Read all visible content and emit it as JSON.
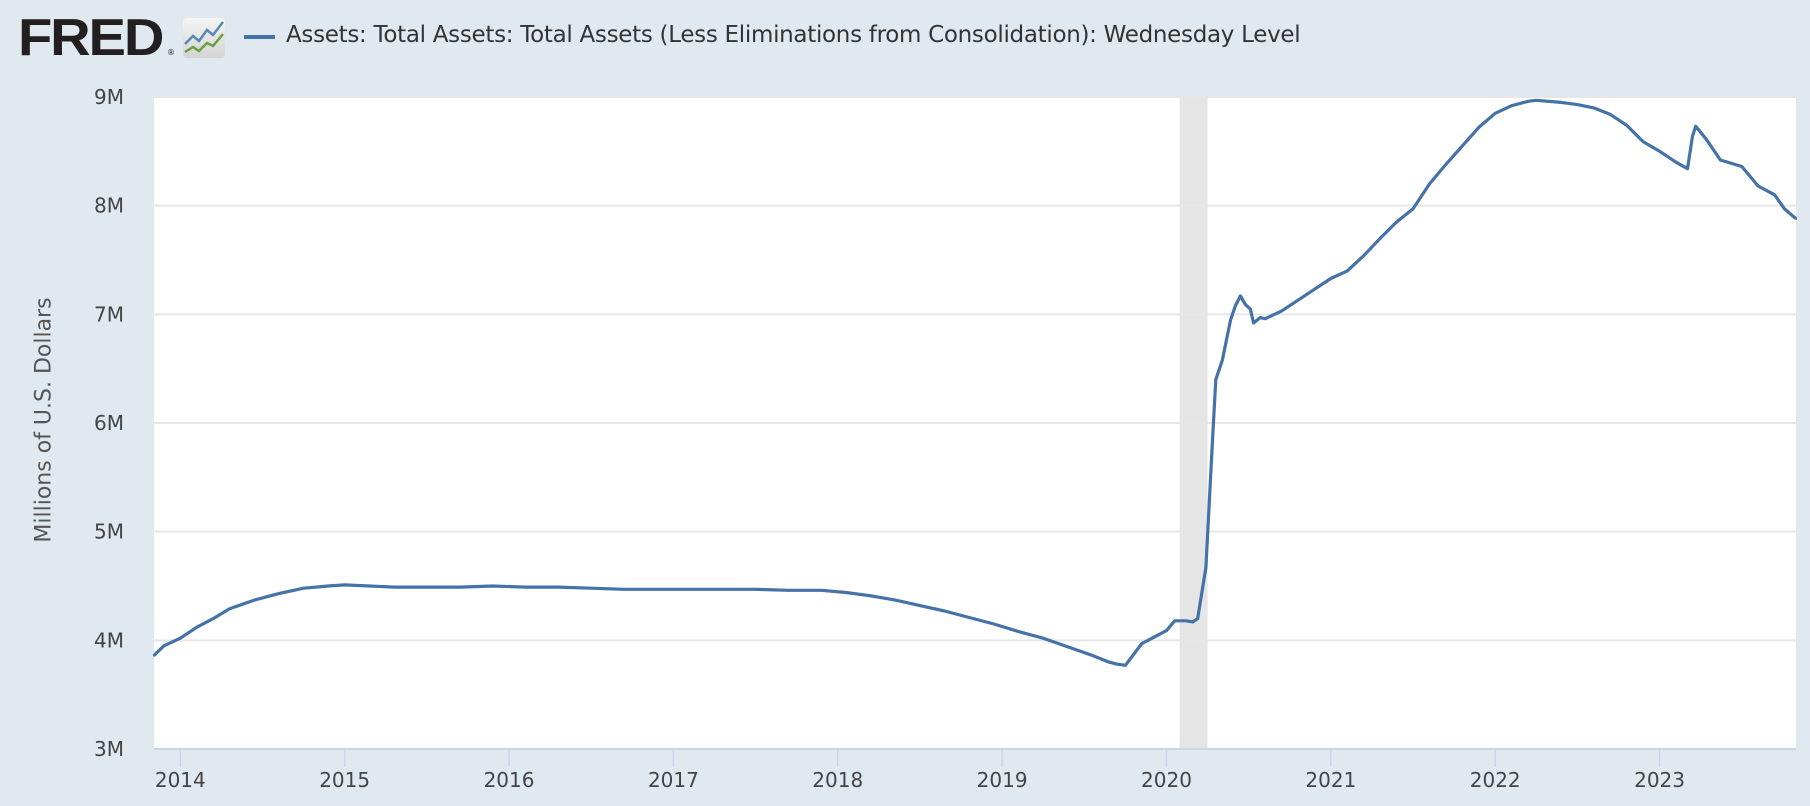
{
  "header": {
    "logo_text": "FRED",
    "logo_mark": "®",
    "logo_icon": "line-chart-icon",
    "series_title": "Assets: Total Assets: Total Assets (Less Eliminations from Consolidation): Wednesday Level"
  },
  "colors": {
    "series": "#4572a7",
    "background": "#e1e9f0",
    "plot": "#ffffff",
    "recession": "#e5e5e5",
    "grid": "#e6e6e6"
  },
  "chart_data": {
    "type": "line",
    "title": "Assets: Total Assets: Total Assets (Less Eliminations from Consolidation): Wednesday Level",
    "xlabel": "",
    "ylabel": "Millions of U.S. Dollars",
    "xlim": [
      2013.84,
      2023.83
    ],
    "ylim": [
      3000000,
      9000000
    ],
    "grid": true,
    "legend": "top-left",
    "x_ticks": [
      "2014",
      "2015",
      "2016",
      "2017",
      "2018",
      "2019",
      "2020",
      "2021",
      "2022",
      "2023"
    ],
    "x_tick_values": [
      2014,
      2015,
      2016,
      2017,
      2018,
      2019,
      2020,
      2021,
      2022,
      2023
    ],
    "y_ticks": [
      "3M",
      "4M",
      "5M",
      "6M",
      "7M",
      "8M",
      "9M"
    ],
    "y_tick_values": [
      3000000,
      4000000,
      5000000,
      6000000,
      7000000,
      8000000,
      9000000
    ],
    "recessions": [
      [
        2020.08,
        2020.25
      ]
    ],
    "series": [
      {
        "name": "Assets: Total Assets: Total Assets (Less Eliminations from Consolidation): Wednesday Level",
        "x": [
          2013.84,
          2013.9,
          2014.0,
          2014.1,
          2014.2,
          2014.3,
          2014.45,
          2014.6,
          2014.75,
          2014.9,
          2015.0,
          2015.15,
          2015.3,
          2015.5,
          2015.7,
          2015.9,
          2016.1,
          2016.3,
          2016.5,
          2016.7,
          2016.9,
          2017.1,
          2017.3,
          2017.5,
          2017.7,
          2017.9,
          2018.05,
          2018.2,
          2018.35,
          2018.5,
          2018.65,
          2018.8,
          2018.95,
          2019.1,
          2019.25,
          2019.4,
          2019.55,
          2019.65,
          2019.7,
          2019.75,
          2019.85,
          2019.95,
          2020.0,
          2020.05,
          2020.12,
          2020.16,
          2020.19,
          2020.2,
          2020.24,
          2020.28,
          2020.3,
          2020.34,
          2020.36,
          2020.39,
          2020.42,
          2020.45,
          2020.48,
          2020.51,
          2020.53,
          2020.57,
          2020.6,
          2020.7,
          2020.8,
          2020.9,
          2021.0,
          2021.1,
          2021.2,
          2021.3,
          2021.4,
          2021.5,
          2021.6,
          2021.7,
          2021.8,
          2021.9,
          2022.0,
          2022.1,
          2022.2,
          2022.25,
          2022.4,
          2022.5,
          2022.6,
          2022.7,
          2022.8,
          2022.9,
          2023.0,
          2023.1,
          2023.17,
          2023.2,
          2023.22,
          2023.28,
          2023.37,
          2023.5,
          2023.6,
          2023.7,
          2023.76,
          2023.83
        ],
        "y": [
          3860000,
          3950000,
          4020000,
          4120000,
          4200000,
          4290000,
          4370000,
          4430000,
          4480000,
          4500000,
          4510000,
          4500000,
          4490000,
          4490000,
          4490000,
          4500000,
          4490000,
          4490000,
          4480000,
          4470000,
          4470000,
          4470000,
          4470000,
          4470000,
          4460000,
          4460000,
          4440000,
          4410000,
          4370000,
          4320000,
          4270000,
          4210000,
          4150000,
          4080000,
          4020000,
          3940000,
          3860000,
          3800000,
          3780000,
          3770000,
          3970000,
          4050000,
          4090000,
          4180000,
          4180000,
          4170000,
          4200000,
          4300000,
          4670000,
          5840000,
          6400000,
          6580000,
          6730000,
          6950000,
          7080000,
          7170000,
          7090000,
          7050000,
          6920000,
          6970000,
          6960000,
          7030000,
          7130000,
          7230000,
          7330000,
          7400000,
          7540000,
          7700000,
          7850000,
          7970000,
          8200000,
          8380000,
          8550000,
          8720000,
          8850000,
          8920000,
          8960000,
          8970000,
          8950000,
          8930000,
          8900000,
          8840000,
          8740000,
          8590000,
          8500000,
          8400000,
          8340000,
          8640000,
          8730000,
          8620000,
          8420000,
          8360000,
          8180000,
          8100000,
          7970000,
          7880000
        ]
      }
    ]
  }
}
